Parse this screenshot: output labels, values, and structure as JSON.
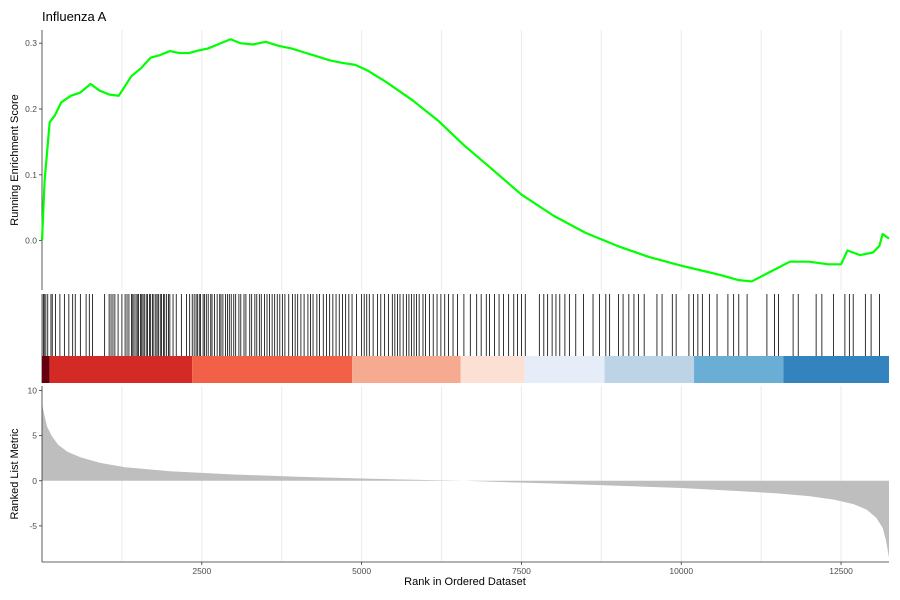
{
  "chart_data": {
    "type": "line",
    "title": "Influenza A",
    "xlabel": "Rank in Ordered Dataset",
    "xlim": [
      0,
      13250
    ],
    "x_ticks": [
      2500,
      5000,
      7500,
      10000,
      12500
    ],
    "x_tick_labels": [
      "2500",
      "5000",
      "7500",
      "10000",
      "12500"
    ],
    "grid": "vertical-minor",
    "panels": {
      "running_score": {
        "ylabel": "Running Enrichment Score",
        "ylim": [
          -0.075,
          0.32
        ],
        "y_ticks": [
          0.0,
          0.1,
          0.2,
          0.3
        ],
        "y_tick_labels": [
          "0.0",
          "0.1",
          "0.2",
          "0.3"
        ],
        "series": [
          {
            "color": "#00ff00",
            "x": [
              0,
              40,
              120,
              200,
              300,
              450,
              600,
              760,
              900,
              1050,
              1200,
              1280,
              1400,
              1550,
              1700,
              1850,
              2000,
              2150,
              2300,
              2450,
              2600,
              2800,
              2950,
              3100,
              3300,
              3500,
              3700,
              3900,
              4100,
              4300,
              4500,
              4700,
              4900,
              5100,
              5400,
              5800,
              6200,
              6600,
              7000,
              7500,
              8000,
              8500,
              9000,
              9500,
              10000,
              10300,
              10600,
              10900,
              11100,
              11300,
              11500,
              11700,
              12000,
              12300,
              12500,
              12600,
              12800,
              13000,
              13100,
              13150,
              13250
            ],
            "y": [
              0.0,
              0.09,
              0.18,
              0.19,
              0.21,
              0.22,
              0.225,
              0.238,
              0.228,
              0.222,
              0.22,
              0.232,
              0.25,
              0.262,
              0.278,
              0.282,
              0.288,
              0.285,
              0.285,
              0.289,
              0.292,
              0.3,
              0.306,
              0.3,
              0.298,
              0.302,
              0.296,
              0.292,
              0.286,
              0.28,
              0.274,
              0.27,
              0.267,
              0.258,
              0.24,
              0.213,
              0.182,
              0.145,
              0.112,
              0.07,
              0.038,
              0.012,
              -0.008,
              -0.025,
              -0.038,
              -0.045,
              -0.052,
              -0.06,
              -0.062,
              -0.052,
              -0.042,
              -0.032,
              -0.032,
              -0.036,
              -0.036,
              -0.015,
              -0.022,
              -0.018,
              -0.008,
              0.01,
              0.003
            ]
          }
        ]
      },
      "hit_barcode": {
        "hit_ranks": [
          20,
          35,
          60,
          90,
          140,
          160,
          210,
          280,
          350,
          420,
          480,
          520,
          600,
          690,
          740,
          790,
          980,
          1050,
          1080,
          1110,
          1140,
          1190,
          1250,
          1300,
          1330,
          1360,
          1400,
          1420,
          1440,
          1470,
          1490,
          1510,
          1540,
          1560,
          1580,
          1600,
          1630,
          1650,
          1680,
          1700,
          1730,
          1750,
          1780,
          1800,
          1820,
          1850,
          1870,
          1900,
          1920,
          1950,
          1980,
          2000,
          2050,
          2100,
          2180,
          2260,
          2310,
          2350,
          2380,
          2410,
          2430,
          2460,
          2480,
          2520,
          2540,
          2570,
          2600,
          2640,
          2660,
          2700,
          2740,
          2780,
          2800,
          2830,
          2870,
          2900,
          2930,
          2960,
          3000,
          3030,
          3080,
          3110,
          3160,
          3190,
          3250,
          3280,
          3330,
          3360,
          3400,
          3430,
          3480,
          3520,
          3560,
          3600,
          3640,
          3680,
          3720,
          3760,
          3800,
          3860,
          3920,
          3960,
          4000,
          4050,
          4100,
          4160,
          4200,
          4240,
          4300,
          4340,
          4400,
          4450,
          4500,
          4550,
          4600,
          4650,
          4700,
          4750,
          4800,
          4850,
          4920,
          5000,
          5040,
          5080,
          5120,
          5180,
          5250,
          5300,
          5360,
          5420,
          5480,
          5520,
          5560,
          5600,
          5650,
          5700,
          5740,
          5780,
          5820,
          5860,
          5900,
          5960,
          6000,
          6060,
          6120,
          6180,
          6240,
          6300,
          6360,
          6430,
          6500,
          6600,
          6700,
          6800,
          6870,
          6950,
          7000,
          7080,
          7150,
          7220,
          7300,
          7380,
          7440,
          7500,
          7560,
          7780,
          7850,
          7910,
          7980,
          8040,
          8100,
          8180,
          8250,
          8350,
          8470,
          8620,
          8720,
          8820,
          8880,
          9020,
          9090,
          9180,
          9260,
          9330,
          9420,
          9620,
          9700,
          9860,
          9920,
          10120,
          10190,
          10260,
          10330,
          10440,
          10560,
          10730,
          10820,
          10900,
          11030,
          11340,
          11460,
          11520,
          11750,
          11830,
          12110,
          12200,
          12380,
          12560,
          12630,
          12690,
          12880,
          12970,
          13100
        ]
      },
      "ranked_metric": {
        "ylabel": "Ranked List Metric",
        "ylim": [
          -9,
          10.5
        ],
        "y_ticks": [
          -5,
          0,
          5,
          10
        ],
        "y_tick_labels": [
          "-5",
          "0",
          "5",
          "10"
        ],
        "fill": "#bebebe",
        "x": [
          0,
          30,
          80,
          150,
          250,
          400,
          600,
          900,
          1300,
          2000,
          3000,
          4000,
          5000,
          6000,
          6600,
          7000,
          8000,
          9000,
          10000,
          10800,
          11500,
          12000,
          12400,
          12700,
          12900,
          13050,
          13150,
          13200,
          13250
        ],
        "y": [
          8.5,
          7.5,
          6.0,
          5.0,
          4.0,
          3.2,
          2.6,
          2.0,
          1.5,
          1.05,
          0.7,
          0.45,
          0.25,
          0.08,
          0.0,
          -0.1,
          -0.3,
          -0.55,
          -0.8,
          -1.1,
          -1.4,
          -1.7,
          -2.1,
          -2.6,
          -3.2,
          -4.1,
          -5.2,
          -6.5,
          -8.5
        ]
      },
      "color_bands": [
        {
          "from": 0,
          "to": 120,
          "color": "#67000d"
        },
        {
          "from": 120,
          "to": 2350,
          "color": "#d42a26"
        },
        {
          "from": 2350,
          "to": 4850,
          "color": "#f26048"
        },
        {
          "from": 4850,
          "to": 6550,
          "color": "#f6ab91"
        },
        {
          "from": 6550,
          "to": 7550,
          "color": "#fbe0d3"
        },
        {
          "from": 7550,
          "to": 8800,
          "color": "#e6edf8"
        },
        {
          "from": 8800,
          "to": 10200,
          "color": "#bcd4e6"
        },
        {
          "from": 10200,
          "to": 11600,
          "color": "#6aaed6"
        },
        {
          "from": 11600,
          "to": 13250,
          "color": "#3383be"
        }
      ]
    }
  }
}
